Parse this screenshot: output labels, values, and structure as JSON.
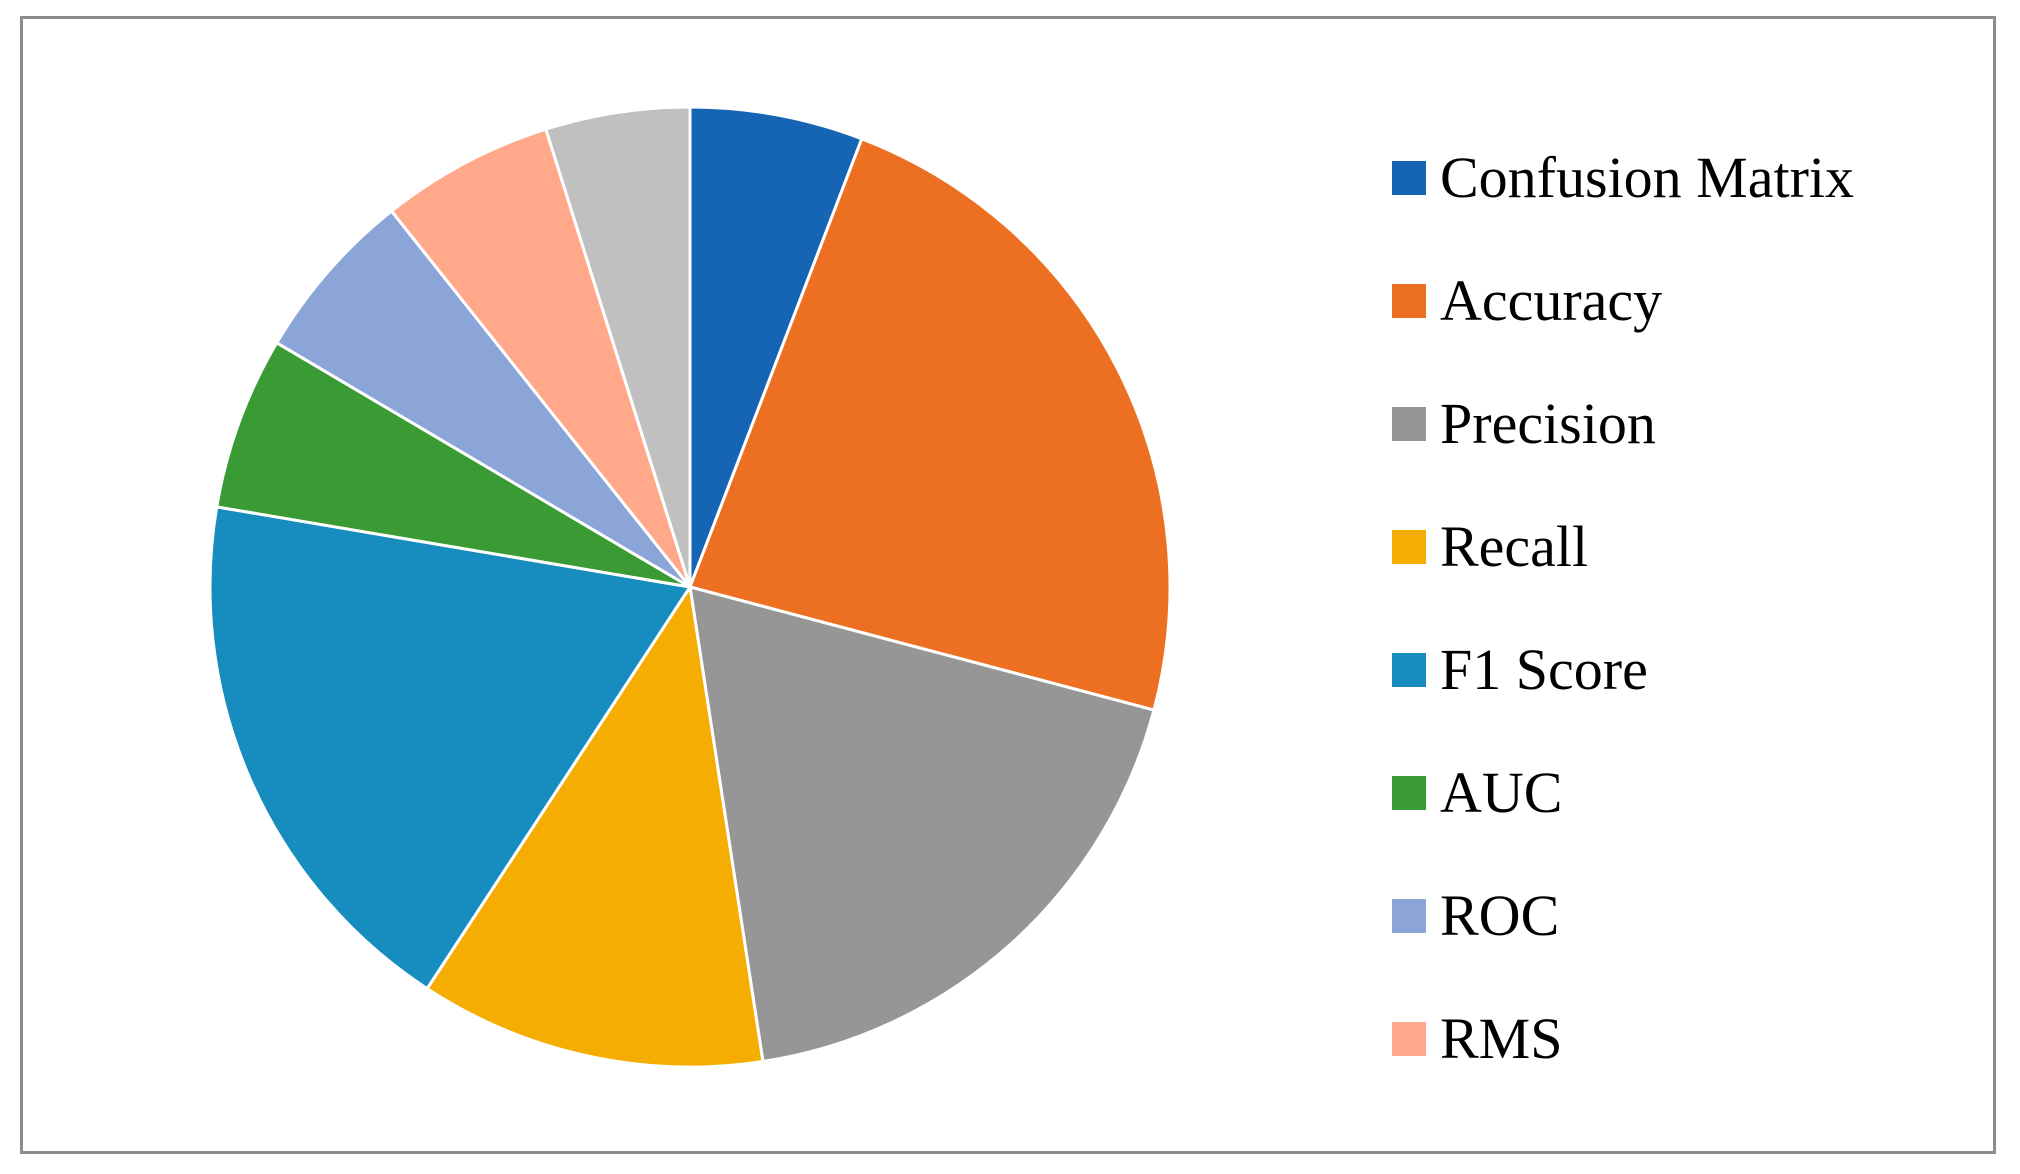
{
  "chart_data": {
    "type": "pie",
    "start_angle_deg": 0,
    "direction": "clockwise",
    "legend_position": "right",
    "slices": [
      {
        "name": "Confusion Matrix",
        "value": 6,
        "color": "#1565b4"
      },
      {
        "name": "Accuracy",
        "value": 24,
        "color": "#ed7022"
      },
      {
        "name": "Precision",
        "value": 19,
        "color": "#969696"
      },
      {
        "name": "Recall",
        "value": 12,
        "color": "#f4ad00"
      },
      {
        "name": "F1 Score",
        "value": 19,
        "color": "#178cbf"
      },
      {
        "name": "AUC",
        "value": 6,
        "color": "#3a9a33"
      },
      {
        "name": "ROC",
        "value": 6,
        "color": "#8ba5d9"
      },
      {
        "name": "RMS",
        "value": 6,
        "color": "#ffa98a"
      },
      {
        "name": "",
        "value": 5,
        "color": "#c0c0c0"
      }
    ],
    "legend": [
      {
        "label": "Confusion Matrix",
        "color": "#1565b4"
      },
      {
        "label": "Accuracy",
        "color": "#ed7022"
      },
      {
        "label": "Precision",
        "color": "#969696"
      },
      {
        "label": "Recall",
        "color": "#f4ad00"
      },
      {
        "label": "F1 Score",
        "color": "#178cbf"
      },
      {
        "label": "AUC",
        "color": "#3a9a33"
      },
      {
        "label": "ROC",
        "color": "#8ba5d9"
      },
      {
        "label": "RMS",
        "color": "#ffa98a"
      }
    ]
  }
}
